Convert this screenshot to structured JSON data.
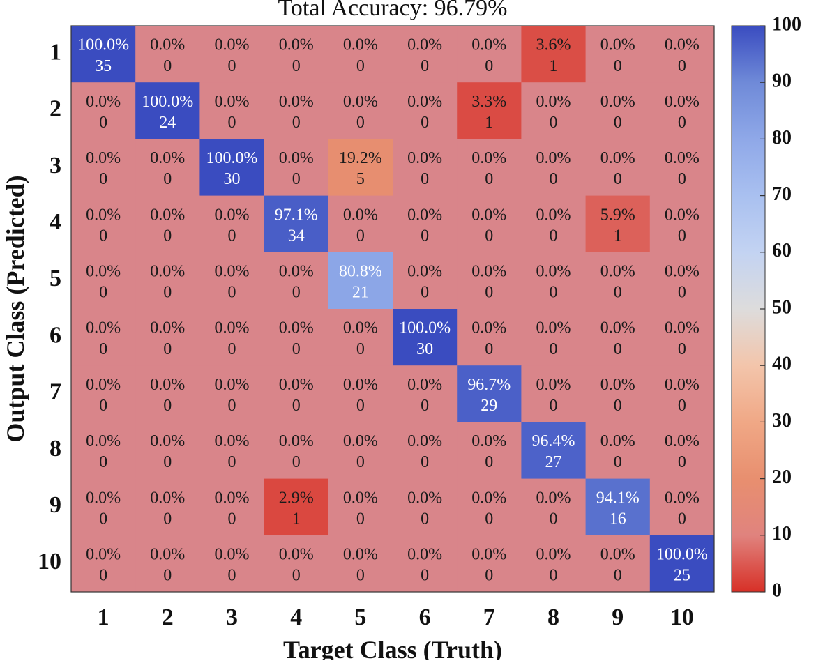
{
  "chart_data": {
    "type": "heatmap",
    "title": "Total Accuracy: 96.79%",
    "xlabel": "Target Class (Truth)",
    "ylabel": "Output Class (Predicted)",
    "x_categories": [
      "1",
      "2",
      "3",
      "4",
      "5",
      "6",
      "7",
      "8",
      "9",
      "10"
    ],
    "y_categories": [
      "1",
      "2",
      "3",
      "4",
      "5",
      "6",
      "7",
      "8",
      "9",
      "10"
    ],
    "percent": [
      [
        100.0,
        0.0,
        0.0,
        0.0,
        0.0,
        0.0,
        0.0,
        3.6,
        0.0,
        0.0
      ],
      [
        0.0,
        100.0,
        0.0,
        0.0,
        0.0,
        0.0,
        3.3,
        0.0,
        0.0,
        0.0
      ],
      [
        0.0,
        0.0,
        100.0,
        0.0,
        19.2,
        0.0,
        0.0,
        0.0,
        0.0,
        0.0
      ],
      [
        0.0,
        0.0,
        0.0,
        97.1,
        0.0,
        0.0,
        0.0,
        0.0,
        5.9,
        0.0
      ],
      [
        0.0,
        0.0,
        0.0,
        0.0,
        80.8,
        0.0,
        0.0,
        0.0,
        0.0,
        0.0
      ],
      [
        0.0,
        0.0,
        0.0,
        0.0,
        0.0,
        100.0,
        0.0,
        0.0,
        0.0,
        0.0
      ],
      [
        0.0,
        0.0,
        0.0,
        0.0,
        0.0,
        0.0,
        96.7,
        0.0,
        0.0,
        0.0
      ],
      [
        0.0,
        0.0,
        0.0,
        0.0,
        0.0,
        0.0,
        0.0,
        96.4,
        0.0,
        0.0
      ],
      [
        0.0,
        0.0,
        0.0,
        2.9,
        0.0,
        0.0,
        0.0,
        0.0,
        94.1,
        0.0
      ],
      [
        0.0,
        0.0,
        0.0,
        0.0,
        0.0,
        0.0,
        0.0,
        0.0,
        0.0,
        100.0
      ]
    ],
    "counts": [
      [
        35,
        0,
        0,
        0,
        0,
        0,
        0,
        1,
        0,
        0
      ],
      [
        0,
        24,
        0,
        0,
        0,
        0,
        1,
        0,
        0,
        0
      ],
      [
        0,
        0,
        30,
        0,
        5,
        0,
        0,
        0,
        0,
        0
      ],
      [
        0,
        0,
        0,
        34,
        0,
        0,
        0,
        0,
        1,
        0
      ],
      [
        0,
        0,
        0,
        0,
        21,
        0,
        0,
        0,
        0,
        0
      ],
      [
        0,
        0,
        0,
        0,
        0,
        30,
        0,
        0,
        0,
        0
      ],
      [
        0,
        0,
        0,
        0,
        0,
        0,
        29,
        0,
        0,
        0
      ],
      [
        0,
        0,
        0,
        0,
        0,
        0,
        0,
        27,
        0,
        0
      ],
      [
        0,
        0,
        0,
        1,
        0,
        0,
        0,
        0,
        16,
        0
      ],
      [
        0,
        0,
        0,
        0,
        0,
        0,
        0,
        0,
        0,
        25
      ]
    ],
    "colorbar": {
      "range": [
        0,
        100
      ],
      "ticks": [
        0,
        10,
        20,
        30,
        40,
        50,
        60,
        70,
        80,
        90,
        100
      ],
      "colormap": [
        {
          "stop": 0,
          "color": "#d73027"
        },
        {
          "stop": 10,
          "color": "#e0837e"
        },
        {
          "stop": 20,
          "color": "#e88f6f"
        },
        {
          "stop": 30,
          "color": "#f0a886"
        },
        {
          "stop": 40,
          "color": "#f3c5ab"
        },
        {
          "stop": 50,
          "color": "#dddcdc"
        },
        {
          "stop": 60,
          "color": "#c3d3f2"
        },
        {
          "stop": 70,
          "color": "#a9c0f0"
        },
        {
          "stop": 80,
          "color": "#8fa8e8"
        },
        {
          "stop": 90,
          "color": "#6f8ad8"
        },
        {
          "stop": 100,
          "color": "#3a4cc0"
        }
      ]
    },
    "zero_cell_color": "#d9858a",
    "text_dark": "#1a1a1a",
    "text_light": "#ffffff"
  }
}
